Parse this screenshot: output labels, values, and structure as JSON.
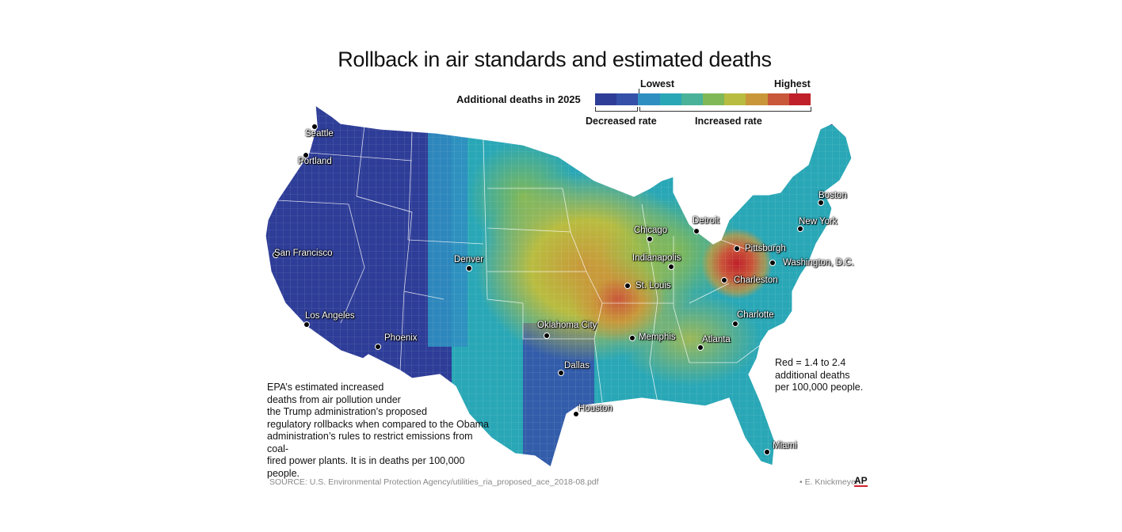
{
  "title": "Rollback in air standards and estimated deaths",
  "legend": {
    "label": "Additional deaths in 2025",
    "lowest": "Lowest",
    "highest": "Highest",
    "decreased": "Decreased rate",
    "increased": "Increased rate",
    "colors": [
      "#2e3d97",
      "#3550a8",
      "#2f8fc0",
      "#29a7b6",
      "#4bb29a",
      "#80b858",
      "#b8bc40",
      "#c9963a",
      "#c9573a",
      "#c0202a"
    ]
  },
  "cities": [
    {
      "name": "Seattle"
    },
    {
      "name": "Portland"
    },
    {
      "name": "San Francisco"
    },
    {
      "name": "Los Angeles"
    },
    {
      "name": "Phoenix"
    },
    {
      "name": "Denver"
    },
    {
      "name": "Oklahoma City"
    },
    {
      "name": "Dallas"
    },
    {
      "name": "Houston"
    },
    {
      "name": "St. Louis"
    },
    {
      "name": "Memphis"
    },
    {
      "name": "Chicago"
    },
    {
      "name": "Indianapolis"
    },
    {
      "name": "Detroit"
    },
    {
      "name": "Atlanta"
    },
    {
      "name": "Charlotte"
    },
    {
      "name": "Charleston"
    },
    {
      "name": "Pittsburgh"
    },
    {
      "name": "Washington, D.C."
    },
    {
      "name": "New York"
    },
    {
      "name": "Boston"
    },
    {
      "name": "Miami"
    }
  ],
  "description": "EPA’s estimated increased\ndeaths from air pollution under\nthe Trump administration’s proposed\nregulatory rollbacks when compared to the Obama\nadministration’s rules to restrict emissions from coal-\nfired power plants. It is in deaths per 100,000 people.",
  "red_note": "Red = 1.4 to 2.4\nadditional deaths\nper 100,000 people.",
  "source": "SOURCE: U.S. Environmental Protection Agency/utilities_ria_proposed_ace_2018-08.pdf",
  "credit": "• E. Knickmeyer",
  "ap_logo": "AP"
}
